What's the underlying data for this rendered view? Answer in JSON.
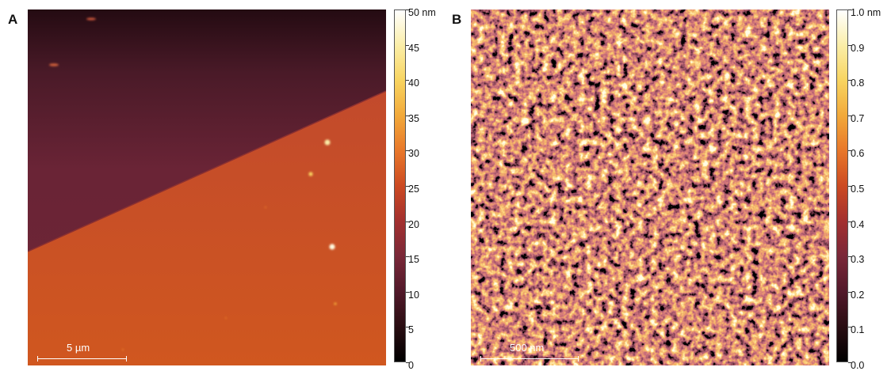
{
  "panel_a": {
    "letter": "A",
    "scalebar_label": "5 µm",
    "colorbar": {
      "unit_label": "50 nm",
      "ticks": [
        "45",
        "40",
        "35",
        "30",
        "25",
        "20",
        "15",
        "10",
        "5",
        "0"
      ]
    }
  },
  "panel_b": {
    "letter": "B",
    "scalebar_label": "500 nm",
    "colorbar": {
      "unit_label": "1.0 nm",
      "ticks": [
        "0.9",
        "0.8",
        "0.7",
        "0.6",
        "0.5",
        "0.4",
        "0.3",
        "0.2",
        "0.1",
        "0.0"
      ]
    }
  },
  "colormap": [
    "#000000",
    "#2a0d12",
    "#52192a",
    "#7a2838",
    "#a3302f",
    "#cc4a22",
    "#e8772a",
    "#f2a93a",
    "#f8d460",
    "#fbeea8",
    "#ffffff"
  ]
}
